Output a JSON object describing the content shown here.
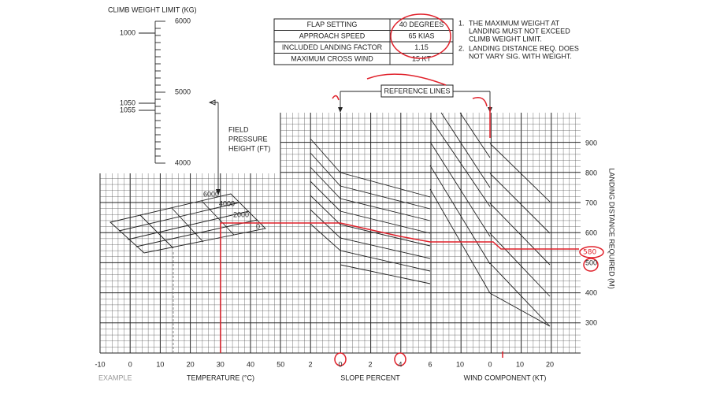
{
  "climb_scale": {
    "title": "CLIMB WEIGHT LIMIT (KG)",
    "left_labels": [
      "1000",
      "1050",
      "1055"
    ],
    "right_labels": [
      "6000",
      "5000",
      "4000"
    ]
  },
  "table": {
    "rows": [
      [
        "FLAP SETTING",
        "40 DEGREES"
      ],
      [
        "APPROACH SPEED",
        "65 KIAS"
      ],
      [
        "INCLUDED LANDING FACTOR",
        "1.15"
      ],
      [
        "MAXIMUM CROSS WIND",
        "15 KT"
      ]
    ]
  },
  "notes": [
    [
      "1.",
      "THE MAXIMUM WEIGHT AT",
      "LANDING MUST NOT EXCEED",
      "CLIMB WEIGHT LIMIT."
    ],
    [
      "2.",
      "LANDING DISTANCE REQ. DOES",
      "NOT VARY SIG. WITH WEIGHT."
    ]
  ],
  "field_pressure": [
    "FIELD",
    "PRESSURE",
    "HEIGHT (FT)"
  ],
  "pressure_labels": [
    "6000",
    "4000",
    "2000",
    "0"
  ],
  "reference_lines": "REFERENCE LINES",
  "temperature": {
    "ticks": [
      "-10",
      "0",
      "10",
      "20",
      "30",
      "40",
      "50"
    ],
    "title": "TEMPERATURE (°C)",
    "example": "EXAMPLE"
  },
  "slope": {
    "ticks": [
      "2",
      "0",
      "2",
      "4",
      "6"
    ],
    "title": "SLOPE PERCENT"
  },
  "wind": {
    "ticks": [
      "10",
      "0",
      "10",
      "20"
    ],
    "title": "WIND COMPONENT (KT)"
  },
  "distance": {
    "ticks": [
      "900",
      "800",
      "700",
      "600",
      "500",
      "400",
      "300"
    ],
    "title": "LANDING DISTANCE REQUIRED (M)"
  },
  "handwritten": "580"
}
